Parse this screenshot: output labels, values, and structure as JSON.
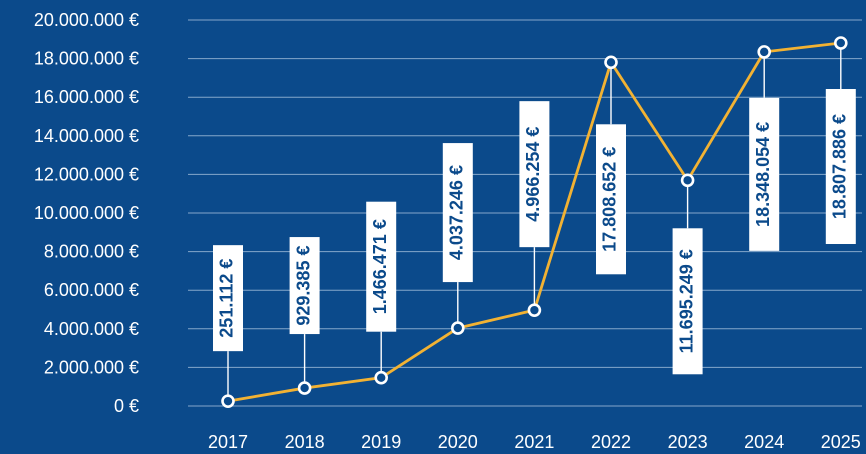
{
  "chart_data": {
    "type": "line",
    "x": [
      "2017",
      "2018",
      "2019",
      "2020",
      "2021",
      "2022",
      "2023",
      "2024",
      "2025"
    ],
    "values": [
      251112,
      929385,
      1466471,
      4037246,
      4966254,
      17808652,
      11695249,
      18348054,
      18807886
    ],
    "data_labels": [
      "251.112 €",
      "929.385 €",
      "1.466.471 €",
      "4.037.246 €",
      "4.966.254 €",
      "17.808.652 €",
      "11.695.249 €",
      "18.348.054 €",
      "18.807.886 €"
    ],
    "y_ticks": [
      "0 €",
      "2.000.000 €",
      "4.000.000 €",
      "6.000.000 €",
      "8.000.000 €",
      "10.000.000 €",
      "12.000.000 €",
      "14.000.000 €",
      "16.000.000 €",
      "18.000.000 €",
      "20.000.000 €"
    ],
    "ylim": [
      0,
      20000000
    ],
    "grid": true,
    "legend": "none",
    "title": "",
    "xlabel": "",
    "ylabel": ""
  },
  "colors": {
    "background": "#0b4a8b",
    "line": "#f2b233",
    "text": "#ffffff",
    "label_text": "#0b4a8b",
    "grid": "#b9cfe7"
  }
}
